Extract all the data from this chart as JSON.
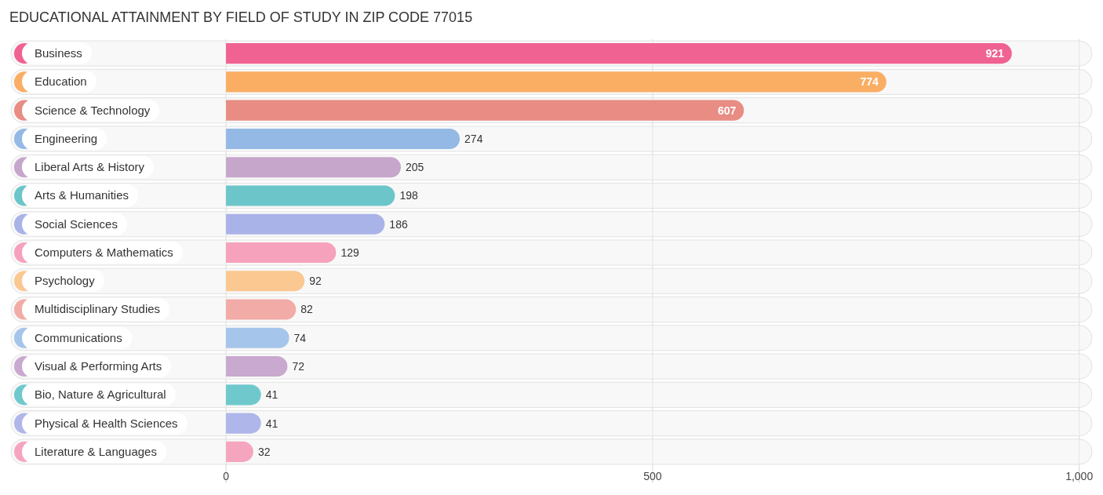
{
  "chart_data": {
    "type": "bar",
    "orientation": "horizontal",
    "title": "EDUCATIONAL ATTAINMENT BY FIELD OF STUDY IN ZIP CODE 77015",
    "categories": [
      "Business",
      "Education",
      "Science & Technology",
      "Engineering",
      "Liberal Arts & History",
      "Arts & Humanities",
      "Social Sciences",
      "Computers & Mathematics",
      "Psychology",
      "Multidisciplinary Studies",
      "Communications",
      "Visual & Performing Arts",
      "Bio, Nature & Agricultural",
      "Physical & Health Sciences",
      "Literature & Languages"
    ],
    "values": [
      921,
      774,
      607,
      274,
      205,
      198,
      186,
      129,
      92,
      82,
      74,
      72,
      41,
      41,
      32
    ],
    "colors": [
      "#f06292",
      "#f9ae63",
      "#e88c84",
      "#93b9e4",
      "#c7a6cc",
      "#6cc6c9",
      "#aab3e8",
      "#f6a2bd",
      "#fbc891",
      "#f2aba6",
      "#a6c5ea",
      "#c9a9cf",
      "#6fc9cc",
      "#aeb6ea",
      "#f6a5bf"
    ],
    "xlim": [
      -252,
      1015
    ],
    "xticks": [
      0,
      500,
      {
        "value": 1000,
        "label": "1,000"
      }
    ],
    "grid": "x",
    "data_labels": true
  }
}
